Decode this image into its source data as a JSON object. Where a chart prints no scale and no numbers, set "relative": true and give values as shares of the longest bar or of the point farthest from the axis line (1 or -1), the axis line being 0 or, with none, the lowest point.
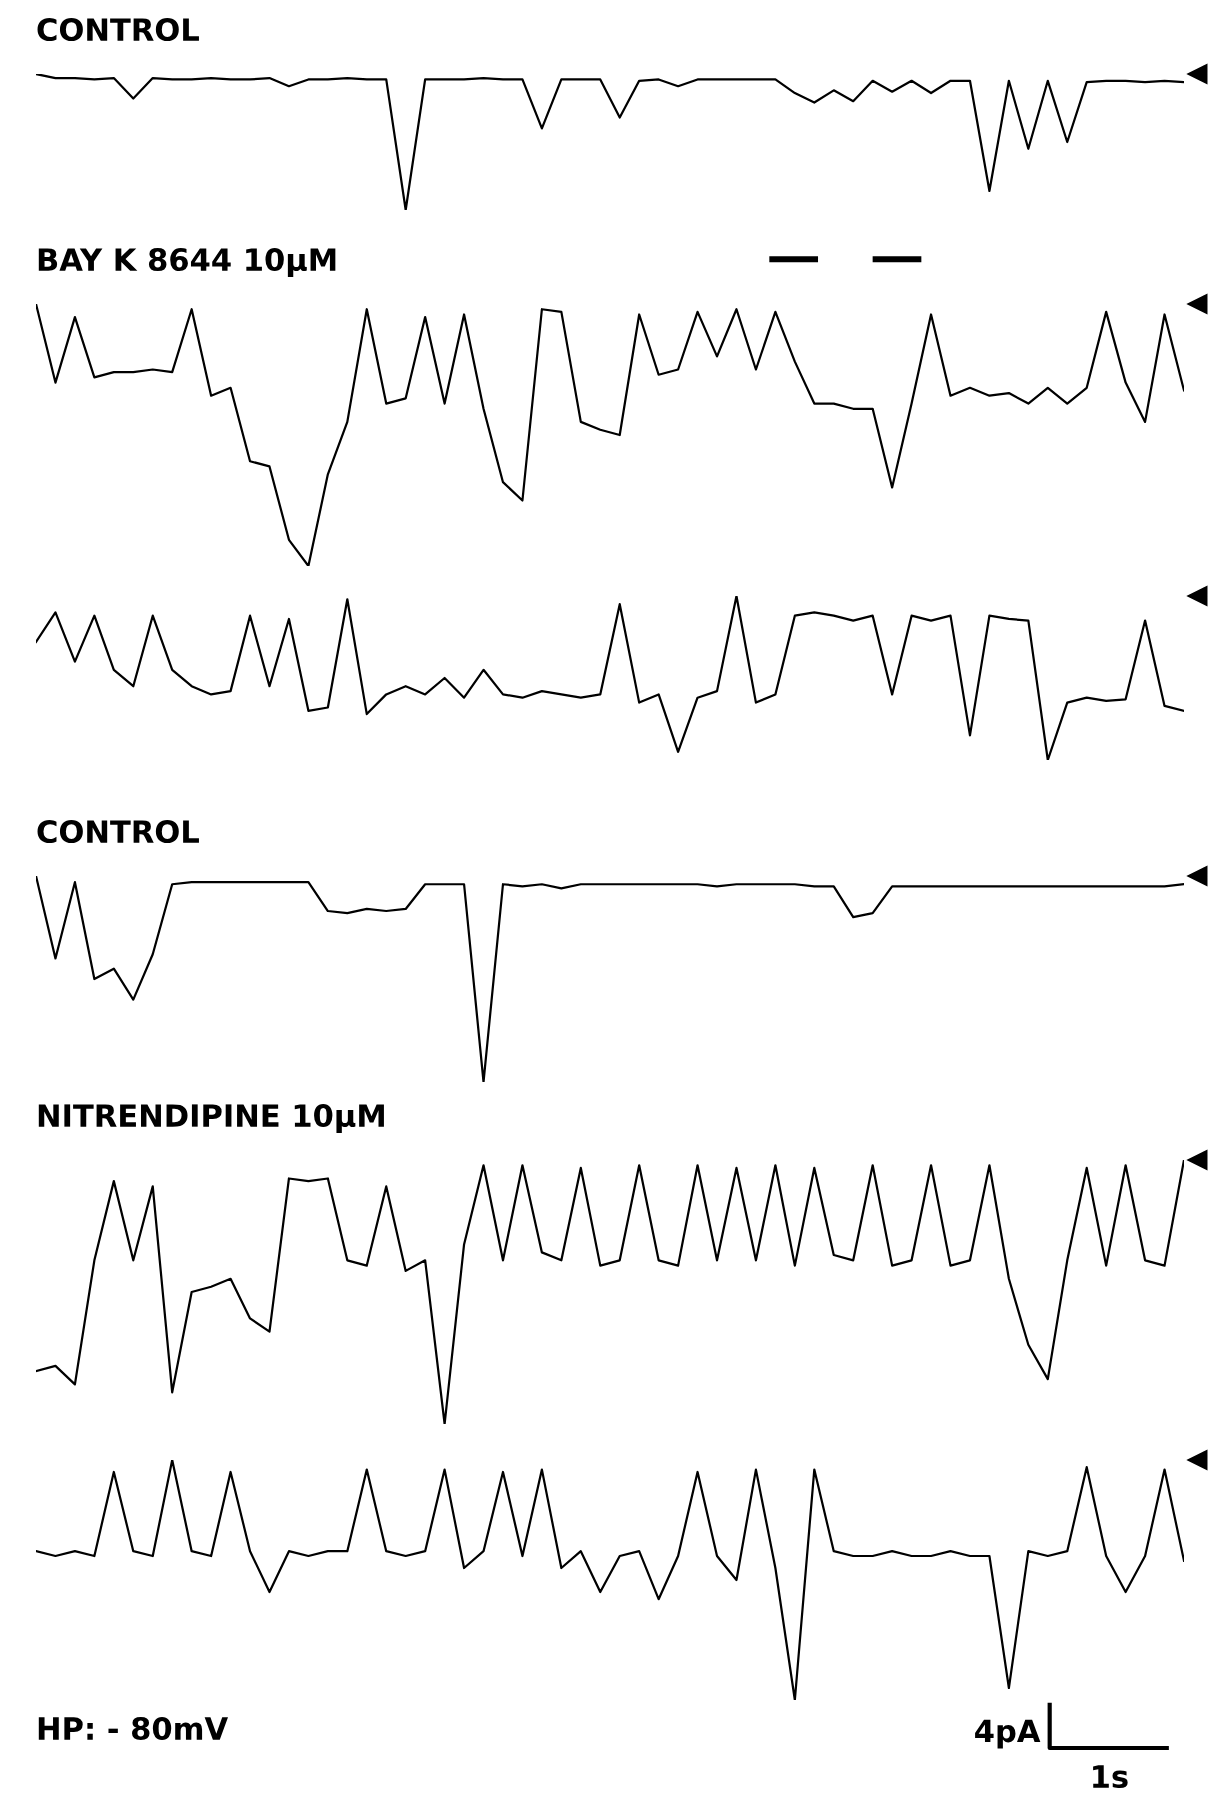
{
  "chart_data": [
    {
      "type": "line",
      "title": "CONTROL",
      "relative": true,
      "color": "#000000",
      "categories": [
        null,
        null,
        null,
        null,
        null,
        null,
        null,
        null,
        null,
        null,
        null,
        null,
        null,
        null,
        null,
        null,
        null,
        null,
        null,
        null,
        null,
        null,
        null,
        null,
        null,
        null,
        null,
        null,
        null,
        null,
        null,
        null,
        null,
        null,
        null,
        null,
        null,
        null,
        null,
        null,
        null,
        null,
        null,
        null,
        null,
        null,
        null,
        null,
        null,
        null,
        null,
        null,
        null,
        null,
        null,
        null,
        null,
        null,
        null,
        null
      ],
      "values": [
        1.0,
        0.97,
        0.97,
        0.96,
        0.97,
        0.82,
        0.97,
        0.96,
        0.96,
        0.97,
        0.96,
        0.96,
        0.97,
        0.91,
        0.96,
        0.96,
        0.97,
        0.96,
        0.96,
        0.0,
        0.96,
        0.96,
        0.96,
        0.97,
        0.96,
        0.96,
        0.6,
        0.96,
        0.96,
        0.96,
        0.68,
        0.95,
        0.96,
        0.91,
        0.96,
        0.96,
        0.96,
        0.96,
        0.96,
        0.86,
        0.79,
        0.88,
        0.8,
        0.95,
        0.87,
        0.95,
        0.86,
        0.95,
        0.95,
        0.14,
        0.95,
        0.45,
        0.95,
        0.5,
        0.94,
        0.95,
        0.95,
        0.94,
        0.95,
        0.94
      ]
    },
    {
      "type": "line",
      "title": "BAY K 8644 10μM",
      "relative": true,
      "color": "#000000",
      "categories": [
        null,
        null,
        null,
        null,
        null,
        null,
        null,
        null,
        null,
        null,
        null,
        null,
        null,
        null,
        null,
        null,
        null,
        null,
        null,
        null,
        null,
        null,
        null,
        null,
        null,
        null,
        null,
        null,
        null,
        null,
        null,
        null,
        null,
        null,
        null,
        null,
        null,
        null,
        null,
        null,
        null,
        null,
        null,
        null,
        null,
        null,
        null,
        null,
        null,
        null,
        null,
        null,
        null,
        null,
        null,
        null,
        null,
        null,
        null,
        null
      ],
      "values": [
        1.0,
        0.7,
        0.95,
        0.72,
        0.74,
        0.74,
        0.75,
        0.74,
        0.98,
        0.65,
        0.68,
        0.4,
        0.38,
        0.1,
        0.0,
        0.35,
        0.55,
        0.98,
        0.62,
        0.64,
        0.95,
        0.62,
        0.96,
        0.6,
        0.32,
        0.25,
        0.98,
        0.97,
        0.55,
        0.52,
        0.5,
        0.96,
        0.73,
        0.75,
        0.97,
        0.8,
        0.98,
        0.75,
        0.97,
        0.78,
        0.62,
        0.62,
        0.6,
        0.6,
        0.3,
        0.62,
        0.96,
        0.65,
        0.68,
        0.65,
        0.66,
        0.62,
        0.68,
        0.62,
        0.68,
        0.97,
        0.7,
        0.55,
        0.96,
        0.67
      ]
    },
    {
      "type": "line",
      "relative": true,
      "color": "#000000",
      "categories": [
        null,
        null,
        null,
        null,
        null,
        null,
        null,
        null,
        null,
        null,
        null,
        null,
        null,
        null,
        null,
        null,
        null,
        null,
        null,
        null,
        null,
        null,
        null,
        null,
        null,
        null,
        null,
        null,
        null,
        null,
        null,
        null,
        null,
        null,
        null,
        null,
        null,
        null,
        null,
        null,
        null,
        null,
        null,
        null,
        null,
        null,
        null,
        null,
        null,
        null,
        null,
        null,
        null,
        null,
        null,
        null,
        null,
        null,
        null,
        null
      ],
      "values": [
        0.72,
        0.9,
        0.6,
        0.88,
        0.55,
        0.45,
        0.88,
        0.55,
        0.45,
        0.4,
        0.42,
        0.88,
        0.45,
        0.86,
        0.3,
        0.32,
        0.98,
        0.28,
        0.4,
        0.45,
        0.4,
        0.5,
        0.38,
        0.55,
        0.4,
        0.38,
        0.42,
        0.4,
        0.38,
        0.4,
        0.95,
        0.35,
        0.4,
        0.05,
        0.38,
        0.42,
        1.0,
        0.35,
        0.4,
        0.88,
        0.9,
        0.88,
        0.85,
        0.88,
        0.4,
        0.88,
        0.85,
        0.88,
        0.15,
        0.88,
        0.86,
        0.85,
        0.0,
        0.35,
        0.38,
        0.36,
        0.37,
        0.85,
        0.33,
        0.3
      ]
    },
    {
      "type": "line",
      "title": "CONTROL",
      "relative": true,
      "color": "#000000",
      "categories": [
        null,
        null,
        null,
        null,
        null,
        null,
        null,
        null,
        null,
        null,
        null,
        null,
        null,
        null,
        null,
        null,
        null,
        null,
        null,
        null,
        null,
        null,
        null,
        null,
        null,
        null,
        null,
        null,
        null,
        null,
        null,
        null,
        null,
        null,
        null,
        null,
        null,
        null,
        null,
        null,
        null,
        null,
        null,
        null,
        null,
        null,
        null,
        null,
        null,
        null,
        null,
        null,
        null,
        null,
        null,
        null,
        null,
        null,
        null,
        null
      ],
      "values": [
        1.0,
        0.6,
        0.97,
        0.5,
        0.55,
        0.4,
        0.62,
        0.96,
        0.97,
        0.97,
        0.97,
        0.97,
        0.97,
        0.97,
        0.97,
        0.83,
        0.82,
        0.84,
        0.83,
        0.84,
        0.96,
        0.96,
        0.96,
        0.0,
        0.96,
        0.95,
        0.96,
        0.94,
        0.96,
        0.96,
        0.96,
        0.96,
        0.96,
        0.96,
        0.96,
        0.95,
        0.96,
        0.96,
        0.96,
        0.96,
        0.95,
        0.95,
        0.8,
        0.82,
        0.95,
        0.95,
        0.95,
        0.95,
        0.95,
        0.95,
        0.95,
        0.95,
        0.95,
        0.95,
        0.95,
        0.95,
        0.95,
        0.95,
        0.95,
        0.96
      ]
    },
    {
      "type": "line",
      "title": "NITRENDIPINE 10μM",
      "relative": true,
      "color": "#000000",
      "categories": [
        null,
        null,
        null,
        null,
        null,
        null,
        null,
        null,
        null,
        null,
        null,
        null,
        null,
        null,
        null,
        null,
        null,
        null,
        null,
        null,
        null,
        null,
        null,
        null,
        null,
        null,
        null,
        null,
        null,
        null,
        null,
        null,
        null,
        null,
        null,
        null,
        null,
        null,
        null,
        null,
        null,
        null,
        null,
        null,
        null,
        null,
        null,
        null,
        null,
        null,
        null,
        null,
        null,
        null,
        null,
        null,
        null,
        null,
        null,
        null
      ],
      "values": [
        0.2,
        0.22,
        0.15,
        0.62,
        0.92,
        0.62,
        0.9,
        0.12,
        0.5,
        0.52,
        0.55,
        0.4,
        0.35,
        0.93,
        0.92,
        0.93,
        0.62,
        0.6,
        0.9,
        0.58,
        0.62,
        0.0,
        0.68,
        0.98,
        0.62,
        0.98,
        0.65,
        0.62,
        0.97,
        0.6,
        0.62,
        0.98,
        0.62,
        0.6,
        0.98,
        0.62,
        0.97,
        0.62,
        0.98,
        0.6,
        0.97,
        0.64,
        0.62,
        0.98,
        0.6,
        0.62,
        0.98,
        0.6,
        0.62,
        0.98,
        0.55,
        0.3,
        0.17,
        0.62,
        0.97,
        0.6,
        0.98,
        0.62,
        0.6,
        1.0
      ]
    },
    {
      "type": "line",
      "relative": true,
      "color": "#000000",
      "annotations": [
        "HP: - 80mV",
        "4pA",
        "1s"
      ],
      "categories": [
        null,
        null,
        null,
        null,
        null,
        null,
        null,
        null,
        null,
        null,
        null,
        null,
        null,
        null,
        null,
        null,
        null,
        null,
        null,
        null,
        null,
        null,
        null,
        null,
        null,
        null,
        null,
        null,
        null,
        null,
        null,
        null,
        null,
        null,
        null,
        null,
        null,
        null,
        null,
        null,
        null,
        null,
        null,
        null,
        null,
        null,
        null,
        null,
        null,
        null,
        null,
        null,
        null,
        null,
        null,
        null,
        null,
        null,
        null,
        null
      ],
      "values": [
        0.62,
        0.6,
        0.62,
        0.6,
        0.95,
        0.62,
        0.6,
        1.0,
        0.62,
        0.6,
        0.95,
        0.62,
        0.45,
        0.62,
        0.6,
        0.62,
        0.62,
        0.96,
        0.62,
        0.6,
        0.62,
        0.96,
        0.55,
        0.62,
        0.95,
        0.6,
        0.96,
        0.55,
        0.62,
        0.45,
        0.6,
        0.62,
        0.42,
        0.6,
        0.95,
        0.6,
        0.5,
        0.96,
        0.55,
        0.0,
        0.96,
        0.62,
        0.6,
        0.6,
        0.62,
        0.6,
        0.6,
        0.62,
        0.6,
        0.6,
        0.05,
        0.62,
        0.6,
        0.62,
        0.97,
        0.6,
        0.45,
        0.6,
        0.96,
        0.58
      ]
    }
  ]
}
